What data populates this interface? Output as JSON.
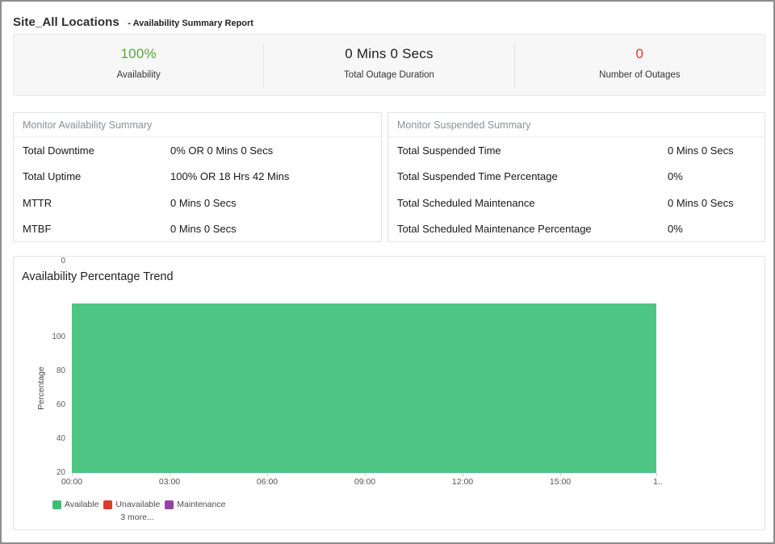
{
  "header": {
    "title": "Site_All Locations",
    "subtitle": "- Availability Summary Report"
  },
  "summary_cards": [
    {
      "value": "100%",
      "label": "Availability",
      "color": "#58a83c"
    },
    {
      "value": "0 Mins 0 Secs",
      "label": "Total Outage Duration",
      "color": "#1c1c1c"
    },
    {
      "value": "0",
      "label": "Number of Outages",
      "color": "#e5342b"
    }
  ],
  "availability_panel": {
    "title": "Monitor Availability Summary",
    "rows": [
      {
        "label": "Total Downtime",
        "value": "0% OR 0 Mins 0 Secs"
      },
      {
        "label": "Total Uptime",
        "value": "100% OR 18 Hrs 42 Mins"
      },
      {
        "label": "MTTR",
        "value": "0 Mins 0 Secs"
      },
      {
        "label": "MTBF",
        "value": "0 Mins 0 Secs"
      }
    ]
  },
  "suspended_panel": {
    "title": "Monitor Suspended Summary",
    "rows": [
      {
        "label": "Total Suspended Time",
        "value": "0 Mins 0 Secs"
      },
      {
        "label": "Total Suspended Time Percentage",
        "value": "0%"
      },
      {
        "label": "Total Scheduled Maintenance",
        "value": "0 Mins 0 Secs"
      },
      {
        "label": "Total Scheduled Maintenance Percentage",
        "value": "0%"
      }
    ]
  },
  "chart_data": {
    "type": "area",
    "title": "Availability Percentage Trend",
    "xlabel": "",
    "ylabel": "Percentage",
    "ylim": [
      0,
      100
    ],
    "yticks": [
      0,
      20,
      40,
      60,
      80,
      100
    ],
    "xticks": [
      "00:00",
      "03:00",
      "06:00",
      "09:00",
      "12:00",
      "15:00",
      "1.."
    ],
    "grid": false,
    "legend_position": "bottom-left",
    "series": [
      {
        "name": "Available",
        "color": "#4ec583",
        "x": [
          "00:00",
          "18:00"
        ],
        "values": [
          100,
          100
        ]
      }
    ],
    "legend": [
      {
        "label": "Available",
        "color": "#3fbc71"
      },
      {
        "label": "Unavailable",
        "color": "#d93a2b"
      },
      {
        "label": "Maintenance",
        "color": "#9643a8"
      }
    ],
    "legend_more": "3 more..."
  }
}
